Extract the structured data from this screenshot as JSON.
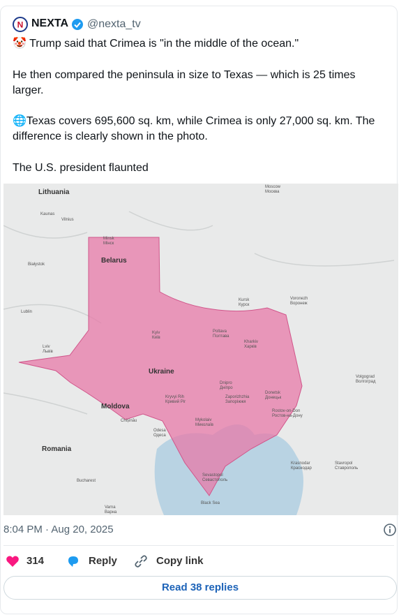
{
  "post": {
    "author": {
      "name": "NEXTA",
      "handle": "@nexta_tv"
    },
    "text": [
      "🤡 Trump said that Crimea is \"in the middle of the ocean.\"",
      "He then compared the peninsula in size to Texas — which is 25 times larger.",
      "🌐Texas covers 695,600 sq. km, while Crimea is only 27,000 sq. km. The difference is clearly shown in the photo.",
      "The U.S. president flaunted"
    ],
    "map": {
      "labels": [
        {
          "text": "Lithuania"
        },
        {
          "text": "Kaunas"
        },
        {
          "text": "Vilnius"
        },
        {
          "text": "Minsk",
          "sub": "Мінск"
        },
        {
          "text": "Belarus"
        },
        {
          "text": "Białystok"
        },
        {
          "text": "Lublin"
        },
        {
          "text": "Lviv",
          "sub": "Львів"
        },
        {
          "text": "Kyiv",
          "sub": "Київ"
        },
        {
          "text": "Ukraine"
        },
        {
          "text": "Moldova"
        },
        {
          "text": "Chișinău"
        },
        {
          "text": "Romania"
        },
        {
          "text": "Bucharest"
        },
        {
          "text": "Varna",
          "sub": "Варна"
        },
        {
          "text": "Odesa",
          "sub": "Одеса"
        },
        {
          "text": "Mykolaiv",
          "sub": "Миколаїв"
        },
        {
          "text": "Kryvyi Rih",
          "sub": "Кривий Ріг"
        },
        {
          "text": "Sevastopol",
          "sub": "Севастополь"
        },
        {
          "text": "Poltava",
          "sub": "Полтава"
        },
        {
          "text": "Kharkiv",
          "sub": "Харків"
        },
        {
          "text": "Dnipro",
          "sub": "Дніпро"
        },
        {
          "text": "Zaporizhzhia",
          "sub": "Запоріжжя"
        },
        {
          "text": "Donetsk",
          "sub": "Донецьк"
        },
        {
          "text": "Rostov-on-Don",
          "sub": "Ростов-на-Дону"
        },
        {
          "text": "Moscow",
          "sub": "Москва"
        },
        {
          "text": "Kursk",
          "sub": "Курск"
        },
        {
          "text": "Voronezh",
          "sub": "Воронеж"
        },
        {
          "text": "Volgograd",
          "sub": "Волгоград"
        },
        {
          "text": "Krasnodar",
          "sub": "Краснодар"
        },
        {
          "text": "Stavropol",
          "sub": "Ставрополь"
        },
        {
          "text": "Black Sea"
        }
      ]
    },
    "timestamp": "8:04 PM · Aug 20, 2025",
    "actions": {
      "likes": "314",
      "reply": "Reply",
      "copy": "Copy link"
    },
    "read_replies": "Read 38 replies"
  }
}
